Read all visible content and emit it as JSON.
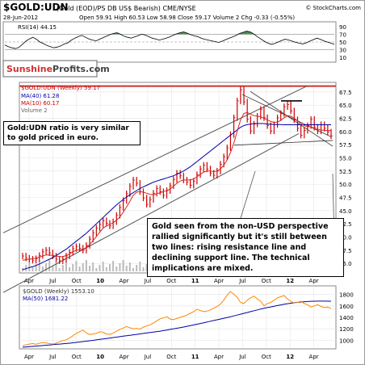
{
  "header": {
    "symbol": "$GOLD:UDN",
    "description": "(Gold (EOD)/PS DB US$ Bearish) CME/NYSE",
    "date": "28-Jun-2012",
    "ohlc": "Open 59.91  High 60.53  Low 58.98  Close 59.17  Volume 2  Chg -0.33 (-0.55%)",
    "watermark": "© StockCharts.com"
  },
  "brand": {
    "part1": "Sunshine",
    "part2": "Profits.com"
  },
  "notes": {
    "left": "Gold:UDN ratio is very similar to gold priced in euro.",
    "main": "Gold seen from the non-USD perspective rallied significantly but it's still between two lines: rising resistance line and declining support line. The technical implications are mixed."
  },
  "colors": {
    "price": "#cc0000",
    "ma40": "#0000aa",
    "ma10": "#dd2222",
    "gold": "#ff8800",
    "ma50": "#0000aa",
    "resistance": "#cc3333",
    "rsiFill": "#2e7d32"
  },
  "chart_data": [
    {
      "type": "line",
      "panel": "rsi",
      "legend": "RSI(14) 44.15",
      "y_ticks": [
        10,
        30,
        50,
        70,
        90
      ],
      "ylim": [
        0,
        100
      ],
      "reference_lines": [
        30,
        50,
        70
      ],
      "series": [
        {
          "name": "RSI(14)",
          "values": [
            42,
            38,
            35,
            33,
            36,
            44,
            52,
            58,
            62,
            57,
            50,
            46,
            41,
            38,
            35,
            37,
            40,
            45,
            48,
            55,
            60,
            64,
            67,
            62,
            58,
            55,
            53,
            57,
            61,
            65,
            69,
            72,
            74,
            70,
            65,
            62,
            60,
            63,
            66,
            70,
            68,
            64,
            60,
            58,
            55,
            57,
            60,
            63,
            67,
            71,
            74,
            76,
            73,
            69,
            66,
            64,
            60,
            57,
            55,
            53,
            51,
            49,
            52,
            56,
            60,
            63,
            67,
            72,
            75,
            78,
            76,
            71,
            64,
            58,
            52,
            47,
            44,
            46,
            50,
            54,
            57,
            55,
            52,
            49,
            47,
            45,
            48,
            52,
            56,
            60,
            57,
            53,
            50,
            47,
            44
          ]
        }
      ]
    },
    {
      "type": "line",
      "panel": "main",
      "legend": [
        "$GOLD:UDN (Weekly) 59.17",
        "MA(40) 61.28",
        "MA(10) 60.17",
        "Volume 2"
      ],
      "x_ticks": [
        "Apr",
        "Jul",
        "Oct",
        "10",
        "Apr",
        "Jul",
        "Oct",
        "11",
        "Apr",
        "Jul",
        "Oct",
        "12",
        "Apr"
      ],
      "y_ticks": [
        35.0,
        37.5,
        40.0,
        42.5,
        45.0,
        47.5,
        50.0,
        52.5,
        55.0,
        57.5,
        60.0,
        62.5,
        65.0,
        67.5
      ],
      "ylim": [
        33.5,
        69
      ],
      "resistance_level": 68.6,
      "series": [
        {
          "name": "$GOLD:UDN (Weekly)",
          "values": [
            36.4,
            36.0,
            35.8,
            35.6,
            35.9,
            36.5,
            37.2,
            37.5,
            37.0,
            36.4,
            35.8,
            35.5,
            35.8,
            36.4,
            37.1,
            37.8,
            38.2,
            37.9,
            37.5,
            38.4,
            39.6,
            40.8,
            41.7,
            42.4,
            43.1,
            42.6,
            42.1,
            42.9,
            44.1,
            45.6,
            46.9,
            48.2,
            49.6,
            50.8,
            50.2,
            48.6,
            47.4,
            46.2,
            47.1,
            48.3,
            49.2,
            48.6,
            47.9,
            48.8,
            49.7,
            50.9,
            52.1,
            51.6,
            50.8,
            50.4,
            49.8,
            50.6,
            51.8,
            52.9,
            53.6,
            52.9,
            52.1,
            51.7,
            52.5,
            53.8,
            55.2,
            56.9,
            59.4,
            62.6,
            65.8,
            67.9,
            65.6,
            62.3,
            60.1,
            61.4,
            62.9,
            64.2,
            62.6,
            61.1,
            60.1,
            61.3,
            62.6,
            63.4,
            64.7,
            65.1,
            63.9,
            62.2,
            60.6,
            59.3,
            60.2,
            61.1,
            62.3,
            60.8,
            60.1,
            61.3,
            60.6,
            59.9,
            59.17
          ]
        },
        {
          "name": "MA(40)",
          "values": [
            33.8,
            34.0,
            34.2,
            34.4,
            34.6,
            34.9,
            35.2,
            35.5,
            35.8,
            36.1,
            36.5,
            36.9,
            37.3,
            37.7,
            38.2,
            38.7,
            39.2,
            39.7,
            40.2,
            40.7,
            41.3,
            41.9,
            42.5,
            43.1,
            43.7,
            44.3,
            44.9,
            45.5,
            46.1,
            46.6,
            47.1,
            47.6,
            48.0,
            48.4,
            48.8,
            49.2,
            49.5,
            49.8,
            50.1,
            50.4,
            50.6,
            50.8,
            51.0,
            51.2,
            51.4,
            51.6,
            51.9,
            52.2,
            52.5,
            52.9,
            53.3,
            53.8,
            54.3,
            54.8,
            55.3,
            55.8,
            56.3,
            56.8,
            57.3,
            57.8,
            58.3,
            58.8,
            59.3,
            59.8,
            60.3,
            60.8,
            61.1,
            61.3,
            61.4,
            61.5,
            61.5,
            61.5,
            61.5,
            61.4,
            61.4,
            61.3,
            61.3,
            61.3,
            61.28,
            61.28,
            61.28,
            61.28,
            61.28,
            61.28,
            61.28,
            61.28,
            61.28,
            61.28,
            61.28,
            61.28,
            61.28,
            61.28,
            61.28
          ]
        },
        {
          "name": "MA(10)",
          "values": [
            35.6,
            35.7,
            35.8,
            35.9,
            36.0,
            36.2,
            36.4,
            36.6,
            36.6,
            36.5,
            36.4,
            36.3,
            36.3,
            36.5,
            36.8,
            37.2,
            37.5,
            37.6,
            37.7,
            38.0,
            38.6,
            39.3,
            40.1,
            40.9,
            41.7,
            42.1,
            42.4,
            42.7,
            43.2,
            43.8,
            44.7,
            45.7,
            46.8,
            47.9,
            48.5,
            48.6,
            48.5,
            48.3,
            48.1,
            48.0,
            48.2,
            48.4,
            48.6,
            48.8,
            49.1,
            49.6,
            50.2,
            50.6,
            50.8,
            50.8,
            50.8,
            51.0,
            51.4,
            51.9,
            52.3,
            52.5,
            52.5,
            52.4,
            52.5,
            52.9,
            53.6,
            54.6,
            56.0,
            57.8,
            60.0,
            62.2,
            63.4,
            63.6,
            63.3,
            63.0,
            62.9,
            62.8,
            62.5,
            62.2,
            61.9,
            61.7,
            61.8,
            62.1,
            62.6,
            63.0,
            62.9,
            62.5,
            62.0,
            61.5,
            61.1,
            60.9,
            60.9,
            60.6,
            60.4,
            60.3,
            60.2,
            60.2,
            60.17
          ]
        }
      ]
    },
    {
      "type": "line",
      "panel": "gold",
      "legend": [
        "$GOLD (Weekly) 1553.10",
        "MA(50) 1681.22"
      ],
      "x_ticks": [
        "Apr",
        "Jul",
        "Oct",
        "10",
        "Apr",
        "Jul",
        "Oct",
        "11",
        "Apr",
        "Jul",
        "Oct",
        "12",
        "Apr"
      ],
      "y_ticks": [
        1000,
        1200,
        1400,
        1600,
        1800
      ],
      "ylim": [
        880,
        1920
      ],
      "series": [
        {
          "name": "$GOLD (Weekly)",
          "values": [
            905,
            925,
            935,
            945,
            930,
            950,
            960,
            955,
            945,
            935,
            950,
            975,
            995,
            1010,
            1040,
            1080,
            1120,
            1150,
            1180,
            1130,
            1100,
            1110,
            1120,
            1150,
            1140,
            1110,
            1105,
            1125,
            1160,
            1190,
            1215,
            1240,
            1220,
            1200,
            1210,
            1195,
            1230,
            1250,
            1270,
            1300,
            1340,
            1375,
            1390,
            1410,
            1370,
            1360,
            1380,
            1400,
            1420,
            1440,
            1470,
            1500,
            1540,
            1520,
            1500,
            1510,
            1530,
            1560,
            1590,
            1630,
            1700,
            1790,
            1850,
            1800,
            1750,
            1660,
            1640,
            1700,
            1740,
            1770,
            1720,
            1680,
            1600,
            1640,
            1660,
            1700,
            1740,
            1760,
            1780,
            1720,
            1680,
            1650,
            1660,
            1680,
            1640,
            1620,
            1580,
            1600,
            1620,
            1590,
            1570,
            1580,
            1553.1
          ]
        },
        {
          "name": "MA(50)",
          "values": [
            880,
            885,
            890,
            895,
            900,
            905,
            910,
            915,
            920,
            925,
            930,
            935,
            940,
            945,
            950,
            957,
            964,
            971,
            978,
            985,
            992,
            1000,
            1008,
            1016,
            1024,
            1032,
            1040,
            1048,
            1056,
            1064,
            1072,
            1080,
            1088,
            1096,
            1104,
            1112,
            1120,
            1128,
            1136,
            1144,
            1152,
            1160,
            1170,
            1180,
            1190,
            1200,
            1210,
            1220,
            1232,
            1244,
            1256,
            1268,
            1280,
            1293,
            1306,
            1319,
            1332,
            1345,
            1358,
            1371,
            1384,
            1397,
            1410,
            1425,
            1440,
            1455,
            1470,
            1485,
            1500,
            1515,
            1530,
            1545,
            1558,
            1570,
            1582,
            1594,
            1605,
            1616,
            1627,
            1637,
            1646,
            1654,
            1661,
            1667,
            1672,
            1676,
            1679,
            1681,
            1682,
            1682,
            1682,
            1681.5,
            1681.22
          ]
        }
      ]
    }
  ]
}
